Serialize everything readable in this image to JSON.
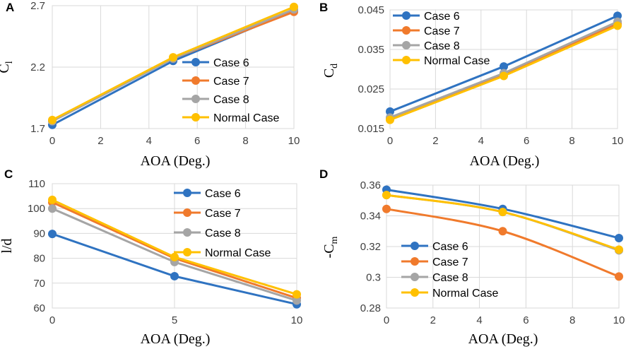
{
  "colors": {
    "Case 6": "#2f73c1",
    "Case 7": "#f07a2c",
    "Case 8": "#a5a5a5",
    "Normal Case": "#ffc000"
  },
  "chart_data": [
    {
      "panel": "A",
      "type": "line",
      "title": "",
      "xlabel": "AOA (Deg.)",
      "ylabel_main": "C",
      "ylabel_sub": "l",
      "xlim": [
        0,
        10
      ],
      "ylim": [
        1.7,
        2.7
      ],
      "xticks": [
        0,
        2,
        4,
        6,
        8,
        10
      ],
      "xtick_labels": [
        "0",
        "2",
        "4",
        "6",
        "8",
        "10"
      ],
      "yticks": [
        1.7,
        2.2,
        2.7
      ],
      "ytick_labels": [
        "1.7",
        "2.2",
        "2.7"
      ],
      "x": [
        0,
        5,
        10
      ],
      "series": [
        {
          "name": "Case 6",
          "values": [
            1.73,
            2.25,
            2.66
          ]
        },
        {
          "name": "Case 7",
          "values": [
            1.76,
            2.27,
            2.65
          ]
        },
        {
          "name": "Case 8",
          "values": [
            1.76,
            2.27,
            2.67
          ]
        },
        {
          "name": "Normal Case",
          "values": [
            1.77,
            2.28,
            2.69
          ]
        }
      ],
      "legend": "lower-right"
    },
    {
      "panel": "B",
      "type": "line",
      "title": "",
      "xlabel": "AOA (Deg.)",
      "ylabel_main": "C",
      "ylabel_sub": "d",
      "xlim": [
        0,
        10
      ],
      "ylim": [
        0.015,
        0.045
      ],
      "xticks": [
        0,
        2,
        4,
        6,
        8,
        10
      ],
      "xtick_labels": [
        "0",
        "2",
        "4",
        "6",
        "8",
        "10"
      ],
      "yticks": [
        0.015,
        0.025,
        0.035,
        0.045
      ],
      "ytick_labels": [
        "0.015",
        "0.025",
        "0.035",
        "0.045"
      ],
      "x": [
        0,
        5,
        10
      ],
      "series": [
        {
          "name": "Case 6",
          "values": [
            0.0193,
            0.0307,
            0.0435
          ]
        },
        {
          "name": "Case 7",
          "values": [
            0.0175,
            0.0287,
            0.0415
          ]
        },
        {
          "name": "Case 8",
          "values": [
            0.0178,
            0.029,
            0.042
          ]
        },
        {
          "name": "Normal Case",
          "values": [
            0.0172,
            0.0283,
            0.041
          ]
        }
      ],
      "legend": "top-left"
    },
    {
      "panel": "C",
      "type": "line",
      "title": "",
      "xlabel": "AOA (Deg.)",
      "ylabel_main": "l/d",
      "ylabel_sub": "",
      "xlim": [
        0,
        10
      ],
      "ylim": [
        60,
        110
      ],
      "xticks": [
        0,
        5,
        10
      ],
      "xtick_labels": [
        "0",
        "5",
        "10"
      ],
      "yticks": [
        60,
        70,
        80,
        90,
        100,
        110
      ],
      "ytick_labels": [
        "60",
        "70",
        "80",
        "90",
        "100",
        "110"
      ],
      "x": [
        0,
        5,
        10
      ],
      "series": [
        {
          "name": "Case 6",
          "values": [
            89.8,
            72.8,
            61.5
          ]
        },
        {
          "name": "Case 7",
          "values": [
            102.5,
            80.0,
            64.0
          ]
        },
        {
          "name": "Case 8",
          "values": [
            100.0,
            78.5,
            63.0
          ]
        },
        {
          "name": "Normal Case",
          "values": [
            103.5,
            80.5,
            65.5
          ]
        }
      ],
      "legend": "top-right"
    },
    {
      "panel": "D",
      "type": "line",
      "title": "",
      "xlabel": "AOA (Deg.)",
      "ylabel_main": "-C",
      "ylabel_sub": "m",
      "xlim": [
        0,
        10
      ],
      "ylim": [
        0.28,
        0.36
      ],
      "xticks": [
        0,
        2,
        4,
        6,
        8,
        10
      ],
      "xtick_labels": [
        "0",
        "2",
        "4",
        "6",
        "8",
        "10"
      ],
      "yticks": [
        0.28,
        0.3,
        0.32,
        0.34,
        0.36
      ],
      "ytick_labels": [
        "0.28",
        "0.3",
        "0.32",
        "0.34",
        "0.36"
      ],
      "x": [
        0,
        5,
        10
      ],
      "series": [
        {
          "name": "Case 6",
          "values": [
            0.357,
            0.3445,
            0.3255
          ]
        },
        {
          "name": "Case 7",
          "values": [
            0.3445,
            0.33,
            0.3005
          ]
        },
        {
          "name": "Case 8",
          "values": [
            0.3535,
            0.3425,
            0.3175
          ]
        },
        {
          "name": "Normal Case",
          "values": [
            0.3535,
            0.3425,
            0.318
          ]
        }
      ],
      "legend": "bottom-left"
    }
  ]
}
